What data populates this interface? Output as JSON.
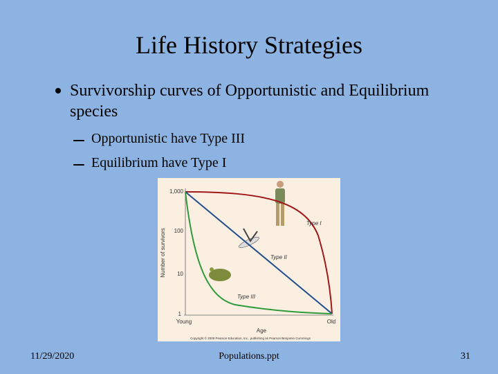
{
  "slide": {
    "title": "Life History Strategies",
    "bullets": [
      {
        "text": "Survivorship curves of  Opportunistic and Equilibrium species",
        "sub_bullets": [
          "Opportunistic have Type III",
          "Equilibrium have Type I"
        ]
      }
    ],
    "figure": {
      "y_axis_label": "Number of survivors",
      "x_axis_label": "Age",
      "y_ticks": [
        "1,000",
        "100",
        "10",
        "1"
      ],
      "x_ticks": [
        "Young",
        "Old"
      ],
      "curve_labels": [
        "Type I",
        "Type II",
        "Type III"
      ],
      "credit": "Copyright © 2009 Pearson Education, Inc., publishing as Pearson Benjamin Cummings"
    },
    "footer": {
      "date": "11/29/2020",
      "file": "Populations.ppt",
      "page": "31"
    }
  }
}
